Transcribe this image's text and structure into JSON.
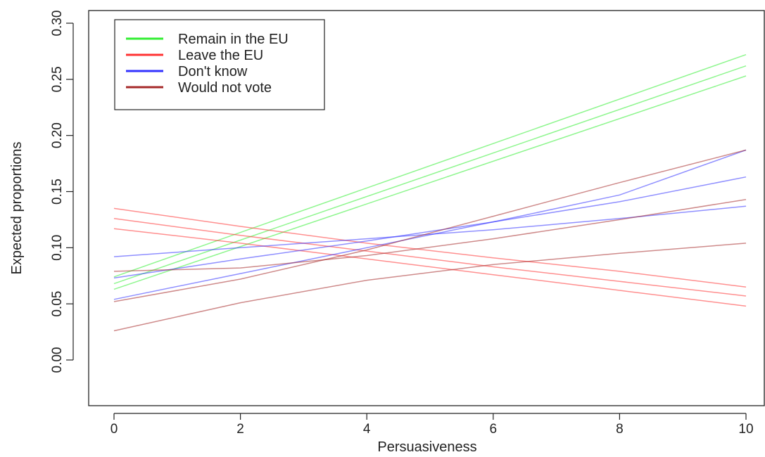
{
  "chart_data": {
    "type": "line",
    "title": "",
    "xlabel": "Persuasiveness",
    "ylabel": "Expected proportions",
    "xlim": [
      0,
      10
    ],
    "ylim": [
      0,
      0.3
    ],
    "x_ticks": [
      "0",
      "2",
      "4",
      "6",
      "8",
      "10"
    ],
    "y_ticks": [
      "0.00",
      "0.05",
      "0.10",
      "0.15",
      "0.20",
      "0.25",
      "0.30"
    ],
    "grid": false,
    "legend_position": "top-left",
    "legend": [
      {
        "label": "Remain in the EU",
        "color": "#33ee33"
      },
      {
        "label": "Leave the EU",
        "color": "#ff3333"
      },
      {
        "label": "Don't know",
        "color": "#3333ff"
      },
      {
        "label": "Would not vote",
        "color": "#a52a2a"
      }
    ],
    "series": [
      {
        "name": "Remain in the EU",
        "color": "#33ee33",
        "x": [
          0,
          10
        ],
        "y": [
          0.074,
          0.272
        ]
      },
      {
        "name": "Remain in the EU",
        "color": "#33ee33",
        "x": [
          0,
          10
        ],
        "y": [
          0.068,
          0.262
        ]
      },
      {
        "name": "Remain in the EU",
        "color": "#33ee33",
        "x": [
          0,
          10
        ],
        "y": [
          0.063,
          0.253
        ]
      },
      {
        "name": "Leave the EU",
        "color": "#ff3333",
        "x": [
          0,
          2,
          4,
          6,
          8,
          10
        ],
        "y": [
          0.135,
          0.119,
          0.104,
          0.091,
          0.079,
          0.065
        ]
      },
      {
        "name": "Leave the EU",
        "color": "#ff3333",
        "x": [
          0,
          2,
          4,
          6,
          8,
          10
        ],
        "y": [
          0.126,
          0.111,
          0.097,
          0.083,
          0.07,
          0.057
        ]
      },
      {
        "name": "Leave the EU",
        "color": "#ff3333",
        "x": [
          0,
          2,
          4,
          6,
          8,
          10
        ],
        "y": [
          0.117,
          0.104,
          0.09,
          0.076,
          0.062,
          0.048
        ]
      },
      {
        "name": "Don't know",
        "color": "#3333ff",
        "x": [
          0,
          2,
          4,
          6,
          8,
          10
        ],
        "y": [
          0.054,
          0.077,
          0.1,
          0.123,
          0.147,
          0.187
        ]
      },
      {
        "name": "Don't know",
        "color": "#3333ff",
        "x": [
          0,
          2,
          4,
          6,
          8,
          10
        ],
        "y": [
          0.073,
          0.09,
          0.106,
          0.123,
          0.141,
          0.163
        ]
      },
      {
        "name": "Don't know",
        "color": "#3333ff",
        "x": [
          0,
          2,
          4,
          6,
          8,
          10
        ],
        "y": [
          0.092,
          0.1,
          0.108,
          0.116,
          0.126,
          0.137
        ]
      },
      {
        "name": "Would not vote",
        "color": "#a52a2a",
        "x": [
          0,
          2,
          4,
          6,
          8,
          10
        ],
        "y": [
          0.052,
          0.072,
          0.098,
          0.128,
          0.158,
          0.187
        ]
      },
      {
        "name": "Would not vote",
        "color": "#a52a2a",
        "x": [
          0,
          2,
          4,
          6,
          8,
          10
        ],
        "y": [
          0.079,
          0.082,
          0.093,
          0.108,
          0.125,
          0.143
        ]
      },
      {
        "name": "Would not vote",
        "color": "#a52a2a",
        "x": [
          0,
          2,
          4,
          6,
          8,
          10
        ],
        "y": [
          0.026,
          0.051,
          0.071,
          0.085,
          0.095,
          0.104
        ]
      }
    ]
  }
}
